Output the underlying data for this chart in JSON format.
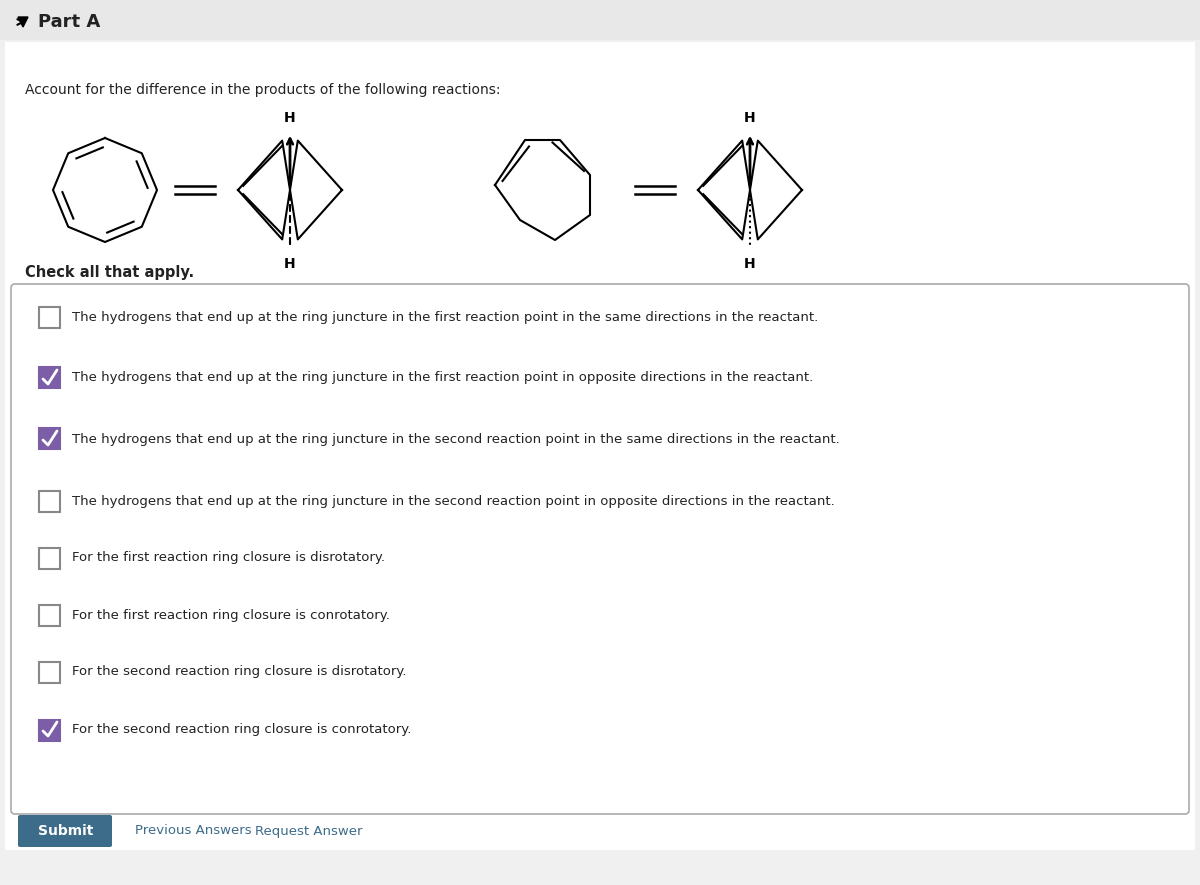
{
  "bg_color": "#f0f0f0",
  "white": "#ffffff",
  "title_text": "Part A",
  "question_text": "Account for the difference in the products of the following reactions:",
  "check_label": "Check all that apply.",
  "checkboxes": [
    {
      "checked": false,
      "text": "The hydrogens that end up at the ring juncture in the first reaction point in the same directions in the reactant."
    },
    {
      "checked": true,
      "text": "The hydrogens that end up at the ring juncture in the first reaction point in opposite directions in the reactant."
    },
    {
      "checked": true,
      "text": "The hydrogens that end up at the ring juncture in the second reaction point in the same directions in the reactant."
    },
    {
      "checked": false,
      "text": "The hydrogens that end up at the ring juncture in the second reaction point in opposite directions in the reactant."
    },
    {
      "checked": false,
      "text": "For the first reaction ring closure is disrotatory."
    },
    {
      "checked": false,
      "text": "For the first reaction ring closure is conrotatory."
    },
    {
      "checked": false,
      "text": "For the second reaction ring closure is disrotatory."
    },
    {
      "checked": true,
      "text": "For the second reaction ring closure is conrotatory."
    }
  ],
  "submit_text": "Submit",
  "prev_text": "Previous Answers",
  "req_text": "Request Answer",
  "submit_bg": "#3d6b8a",
  "submit_fg": "#ffffff",
  "link_color": "#3d6b8a",
  "checkbox_checked_color": "#7b5ea7",
  "checkbox_border": "#555555",
  "text_color": "#222222",
  "header_bg": "#e8e8e8"
}
